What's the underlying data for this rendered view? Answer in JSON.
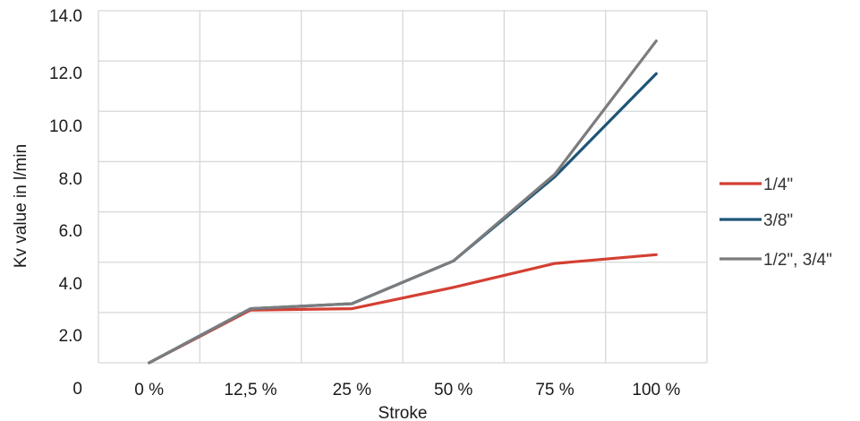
{
  "chart_data": {
    "type": "line",
    "categories": [
      "0 %",
      "12,5 %",
      "25 %",
      "50 %",
      "75 %",
      "100 %"
    ],
    "xlabel": "Stroke",
    "ylabel": "Kv value in l/min",
    "y_tick_labels": [
      "0",
      "2.0",
      "4.0",
      "6.0",
      "8.0",
      "10.0",
      "12.0",
      "14.0"
    ],
    "ylim": [
      0,
      14
    ],
    "grid": true,
    "legend_position": "right",
    "series": [
      {
        "name": "1/4\"",
        "color": "#d43f32",
        "values": [
          0,
          2.1,
          2.15,
          3.0,
          3.95,
          4.3
        ]
      },
      {
        "name": "3/8\"",
        "color": "#1e5577",
        "values": [
          0,
          2.15,
          2.35,
          4.05,
          7.4,
          11.5
        ]
      },
      {
        "name": "1/2\", 3/4\"",
        "color": "#7a7c7e",
        "values": [
          0,
          2.15,
          2.35,
          4.05,
          7.5,
          12.8
        ]
      }
    ]
  }
}
